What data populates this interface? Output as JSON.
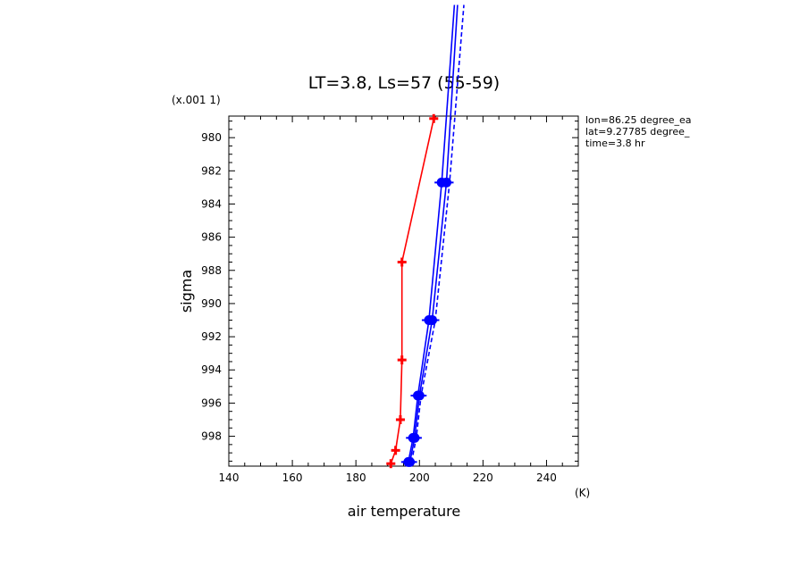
{
  "chart_data": {
    "type": "line",
    "title": "LT=3.8, Ls=57 (55-59)",
    "xlabel": "air temperature",
    "xunits": "(K)",
    "ylabel": "sigma",
    "yscale_note": "(x.001 1)",
    "xlim": [
      140,
      250
    ],
    "ylim": [
      999.8,
      978.7
    ],
    "y_inverted": true,
    "x_ticks": [
      140,
      160,
      180,
      200,
      220,
      240
    ],
    "y_ticks": [
      980,
      982,
      984,
      986,
      988,
      990,
      992,
      994,
      996,
      998
    ],
    "annotations": [
      "lon=86.25 degree_ea",
      "lat=9.27785 degree_",
      "time=3.8 hr"
    ],
    "series": [
      {
        "color": "#ff0000",
        "marker": "plus",
        "dash": false,
        "points": [
          {
            "x": 191.0,
            "y": 999.65
          },
          {
            "x": 192.5,
            "y": 998.85
          },
          {
            "x": 194.0,
            "y": 997.0
          },
          {
            "x": 194.5,
            "y": 993.4
          },
          {
            "x": 194.5,
            "y": 987.5
          },
          {
            "x": 204.5,
            "y": 978.85
          }
        ]
      },
      {
        "color": "#0000ff",
        "marker": "circle",
        "dash": false,
        "points": [
          {
            "x": 196.5,
            "y": 999.55
          },
          {
            "x": 198.0,
            "y": 998.1
          },
          {
            "x": 199.5,
            "y": 995.55
          },
          {
            "x": 203.0,
            "y": 991.0
          },
          {
            "x": 207.0,
            "y": 982.7
          },
          {
            "x": 211.0,
            "y": 972.0
          }
        ]
      },
      {
        "color": "#0000ff",
        "marker": "circle",
        "dash": false,
        "points": [
          {
            "x": 197.0,
            "y": 999.55
          },
          {
            "x": 198.5,
            "y": 998.1
          },
          {
            "x": 200.0,
            "y": 995.55
          },
          {
            "x": 204.0,
            "y": 991.0
          },
          {
            "x": 208.5,
            "y": 982.7
          },
          {
            "x": 212.0,
            "y": 972.0
          }
        ]
      },
      {
        "color": "#0000ff",
        "marker": "none",
        "dash": true,
        "points": [
          {
            "x": 197.5,
            "y": 999.55
          },
          {
            "x": 199.0,
            "y": 998.1
          },
          {
            "x": 200.5,
            "y": 995.55
          },
          {
            "x": 205.0,
            "y": 991.0
          },
          {
            "x": 209.5,
            "y": 982.7
          },
          {
            "x": 214.0,
            "y": 972.0
          }
        ]
      }
    ]
  }
}
